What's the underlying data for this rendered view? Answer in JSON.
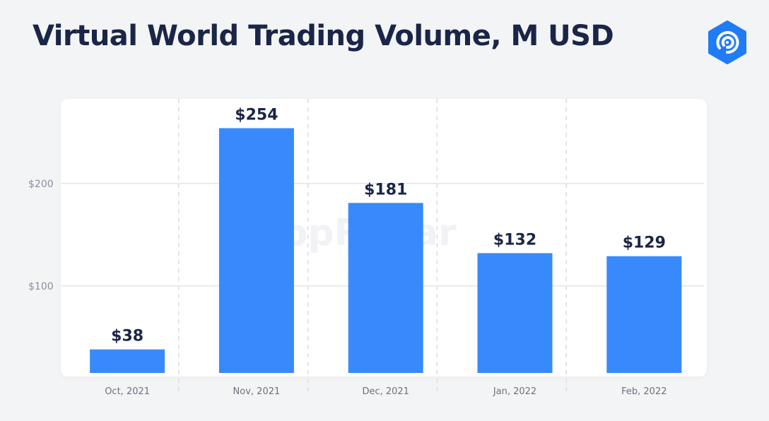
{
  "header": {
    "title": "Virtual World Trading Volume, M USD",
    "logo_icon": "dappradar-logo-icon",
    "brand_color": "#1f7cf5"
  },
  "watermark": "DappRadar",
  "chart_data": {
    "type": "bar",
    "title": "Virtual World Trading Volume, M USD",
    "categories": [
      "Oct, 2021",
      "Nov, 2021",
      "Dec, 2021",
      "Jan, 2022",
      "Feb, 2022"
    ],
    "values": [
      38,
      254,
      181,
      132,
      129
    ],
    "data_labels": [
      "$38",
      "$254",
      "$181",
      "$132",
      "$129"
    ],
    "yticks": [
      100,
      200
    ],
    "ytick_labels": [
      "$100",
      "$200"
    ],
    "ylim": [
      15,
      270
    ],
    "xlabel": "",
    "ylabel": "",
    "grid": true,
    "bar_color": "#388afc",
    "legend": "none"
  }
}
